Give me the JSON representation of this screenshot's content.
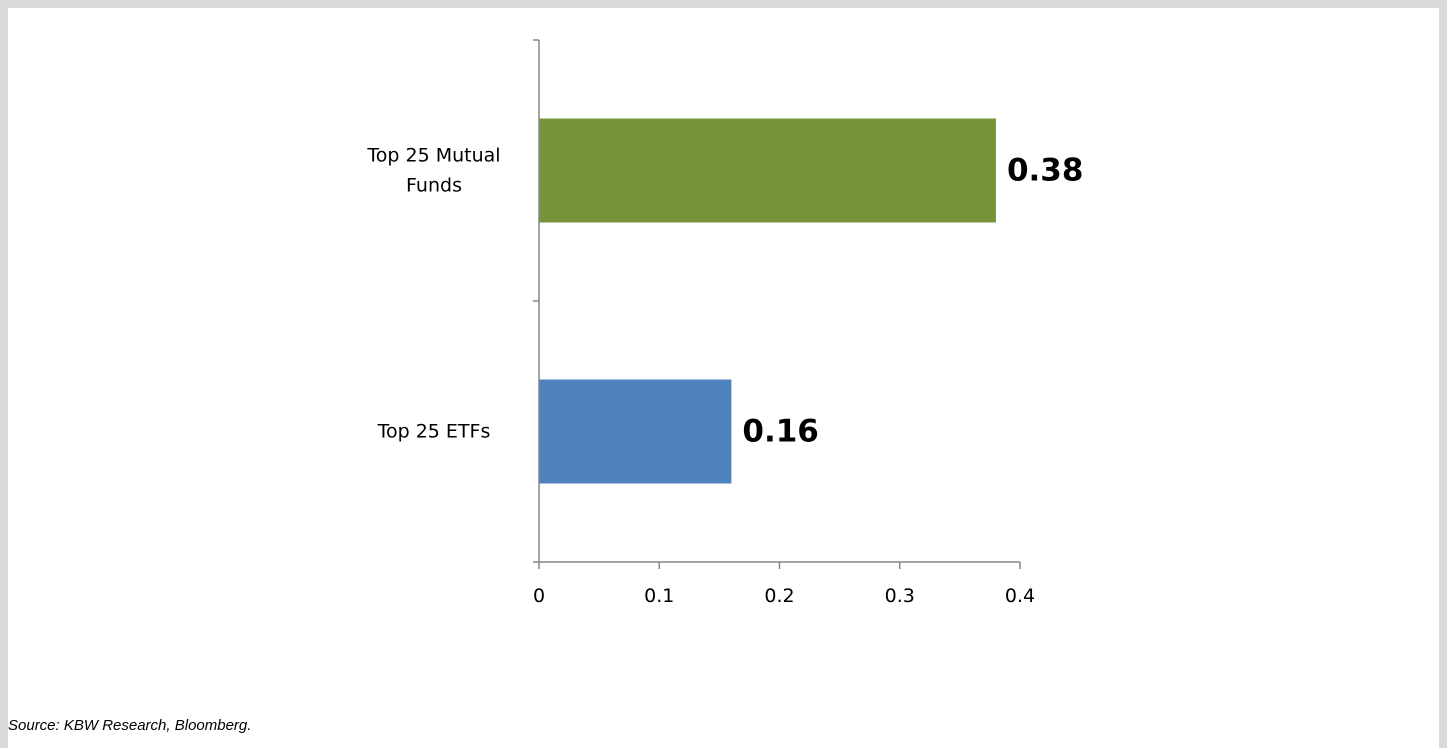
{
  "chart_data": {
    "type": "bar",
    "orientation": "horizontal",
    "categories": [
      "Top 25 Mutual Funds",
      "Top 25 ETFs"
    ],
    "category_label_lines": [
      [
        "Top 25 Mutual",
        "Funds"
      ],
      [
        "Top 25 ETFs"
      ]
    ],
    "values": [
      0.38,
      0.16
    ],
    "data_labels": [
      "0.38",
      "0.16"
    ],
    "bar_colors": [
      "#77933c",
      "#4f81bd"
    ],
    "xlim": [
      0,
      0.4
    ],
    "x_ticks": [
      0,
      0.1,
      0.2,
      0.3,
      0.4
    ],
    "x_tick_labels": [
      "0",
      "0.1",
      "0.2",
      "0.3",
      "0.4"
    ],
    "title": "",
    "xlabel": "",
    "ylabel": "",
    "grid": false,
    "legend": "none"
  },
  "source": "Source: KBW Research, Bloomberg."
}
